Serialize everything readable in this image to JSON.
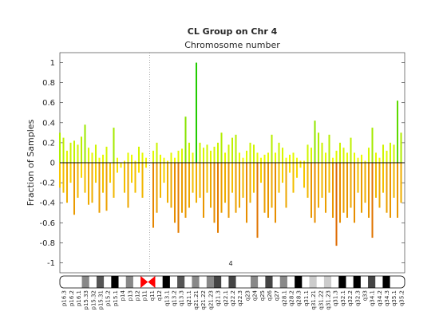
{
  "chart_data": {
    "type": "cnv-bars",
    "title": "CL Group on Chr 4",
    "subtitle": "Chromosome number",
    "y_label": "Fraction of Samples",
    "chromosome_label": "4",
    "xlim": [
      0,
      192
    ],
    "centromere": 50,
    "ylim": [
      -1.1,
      1.1
    ],
    "yticks": [
      -1,
      -0.8,
      -0.6,
      -0.4,
      -0.2,
      0,
      0.2,
      0.4,
      0.6,
      0.8,
      1
    ],
    "gain_colors": [
      "#ffff00",
      "#22cc00"
    ],
    "loss_colors": [
      "#ffee00",
      "#dd6600"
    ],
    "x": [
      0,
      2,
      4,
      6,
      8,
      10,
      12,
      14,
      16,
      18,
      20,
      22,
      24,
      26,
      28,
      30,
      32,
      34,
      36,
      38,
      40,
      42,
      44,
      46,
      48,
      50,
      52,
      54,
      56,
      58,
      60,
      62,
      64,
      66,
      68,
      70,
      72,
      74,
      76,
      78,
      80,
      82,
      84,
      86,
      88,
      90,
      92,
      94,
      96,
      98,
      100,
      102,
      104,
      106,
      108,
      110,
      112,
      114,
      116,
      118,
      120,
      122,
      124,
      126,
      128,
      130,
      132,
      134,
      136,
      138,
      140,
      142,
      144,
      146,
      148,
      150,
      152,
      154,
      156,
      158,
      160,
      162,
      164,
      166,
      168,
      170,
      172,
      174,
      176,
      178,
      180,
      182,
      184,
      186,
      188,
      190
    ],
    "gain": [
      0.3,
      0.25,
      0.12,
      0.2,
      0.22,
      0.18,
      0.26,
      0.38,
      0.15,
      0.1,
      0.18,
      0.05,
      0.08,
      0.16,
      0,
      0.35,
      0.05,
      0,
      0.02,
      0.1,
      0.08,
      0.02,
      0.16,
      0.1,
      0.05,
      0,
      0.12,
      0.2,
      0.08,
      0.05,
      0.02,
      0.1,
      0.05,
      0.12,
      0.14,
      0.46,
      0.2,
      0.1,
      1.0,
      0.2,
      0.15,
      0.18,
      0.12,
      0.16,
      0.2,
      0.3,
      0.1,
      0.18,
      0.25,
      0.28,
      0.1,
      0.05,
      0.12,
      0.2,
      0.18,
      0.1,
      0.05,
      0.08,
      0.1,
      0.28,
      0.1,
      0.2,
      0.15,
      0.05,
      0.08,
      0.1,
      0.05,
      0.02,
      0.02,
      0.18,
      0.15,
      0.42,
      0.3,
      0.2,
      0.1,
      0.28,
      0.05,
      0.12,
      0.2,
      0.15,
      0.1,
      0.25,
      0.1,
      0.05,
      0.08,
      0.02,
      0.15,
      0.35,
      0.1,
      0.05,
      0.18,
      0.12,
      0.2,
      0.18,
      0.62,
      0.3
    ],
    "loss": [
      -0.25,
      -0.3,
      -0.4,
      -0.2,
      -0.52,
      -0.35,
      -0.15,
      -0.3,
      -0.42,
      -0.4,
      -0.2,
      -0.5,
      -0.3,
      -0.48,
      -0.2,
      -0.35,
      -0.1,
      -0.05,
      -0.3,
      -0.45,
      -0.2,
      -0.3,
      -0.1,
      -0.35,
      -0.05,
      0,
      -0.65,
      -0.5,
      -0.35,
      -0.2,
      -0.4,
      -0.45,
      -0.6,
      -0.7,
      -0.5,
      -0.55,
      -0.45,
      -0.3,
      -0.4,
      -0.35,
      -0.55,
      -0.3,
      -0.45,
      -0.6,
      -0.7,
      -0.5,
      -0.4,
      -0.55,
      -0.3,
      -0.5,
      -0.45,
      -0.35,
      -0.6,
      -0.4,
      -0.3,
      -0.75,
      -0.2,
      -0.5,
      -0.55,
      -0.45,
      -0.6,
      -0.3,
      -0.2,
      -0.45,
      -0.1,
      -0.3,
      -0.15,
      -0.05,
      -0.25,
      -0.35,
      -0.55,
      -0.6,
      -0.45,
      -0.35,
      -0.5,
      -0.3,
      -0.55,
      -0.83,
      -0.6,
      -0.5,
      -0.55,
      -0.45,
      -0.6,
      -0.3,
      -0.5,
      -0.4,
      -0.55,
      -0.75,
      -0.35,
      -0.45,
      -0.3,
      -0.5,
      -0.55,
      -0.35,
      -0.55,
      -0.4
    ],
    "bands": [
      "p16.3",
      "p16.2",
      "p16.1",
      "p15.33",
      "p15.32",
      "p15.31",
      "p15.2",
      "p15.1",
      "p14",
      "p13",
      "p12",
      "p11",
      "q11",
      "q12",
      "q13.1",
      "q13.2",
      "q13.3",
      "q21.1",
      "q21.21",
      "q21.22",
      "q21.23",
      "q21.3",
      "q22.1",
      "q22.2",
      "q22.3",
      "q23",
      "q24",
      "q25",
      "q26",
      "q27",
      "q28.1",
      "q28.2",
      "q28.3",
      "q31.1",
      "q31.21",
      "q31.22",
      "q31.23",
      "q31.3",
      "q32.1",
      "q32.2",
      "q32.3",
      "q33",
      "q34.1",
      "q34.2",
      "q34.3",
      "q35.1",
      "q35.2"
    ]
  }
}
